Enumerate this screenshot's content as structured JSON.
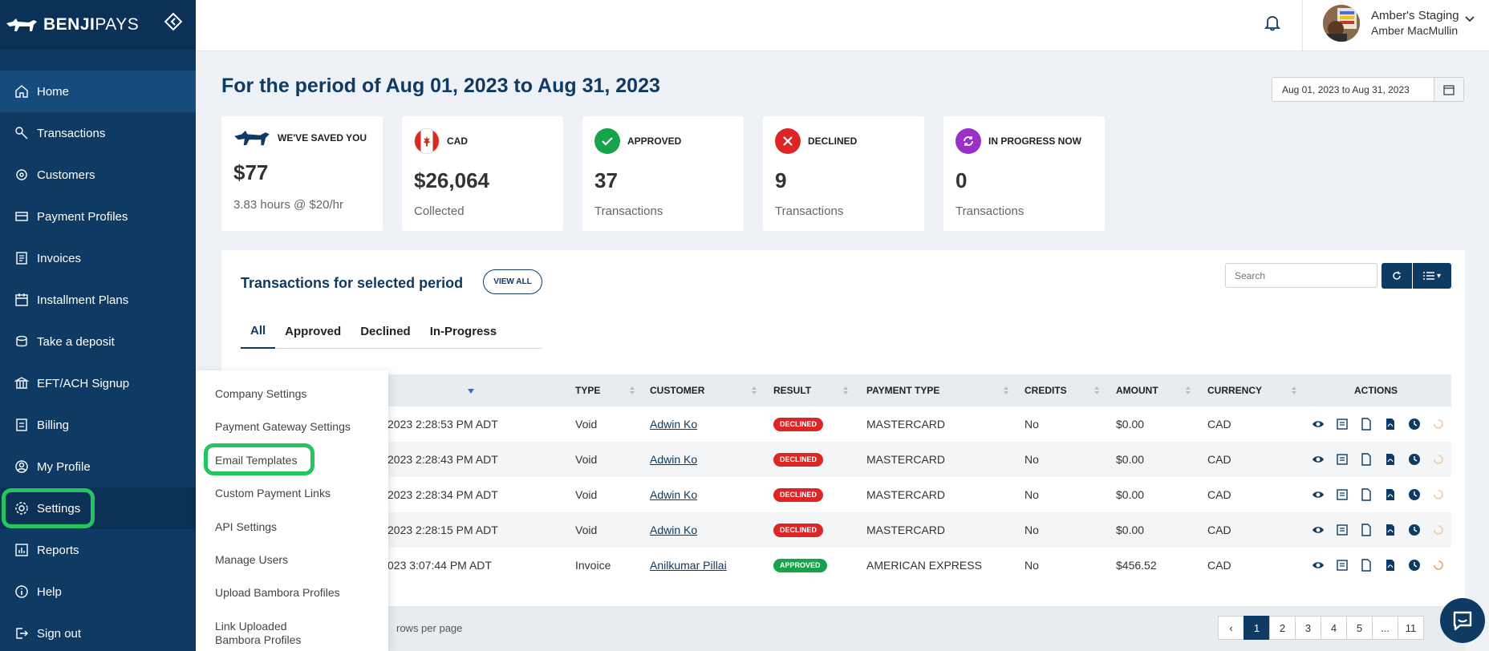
{
  "brand": {
    "bold": "BENJI",
    "light": "PAYS"
  },
  "sidebar": {
    "items": [
      {
        "label": "Home",
        "icon": "home-icon"
      },
      {
        "label": "Transactions",
        "icon": "transactions-icon"
      },
      {
        "label": "Customers",
        "icon": "customers-icon"
      },
      {
        "label": "Payment Profiles",
        "icon": "payment-profiles-icon"
      },
      {
        "label": "Invoices",
        "icon": "invoices-icon"
      },
      {
        "label": "Installment Plans",
        "icon": "calendar-icon"
      },
      {
        "label": "Take a deposit",
        "icon": "deposit-icon"
      },
      {
        "label": "EFT/ACH Signup",
        "icon": "bank-icon"
      },
      {
        "label": "Billing",
        "icon": "billing-icon"
      },
      {
        "label": "My Profile",
        "icon": "profile-icon"
      },
      {
        "label": "Settings",
        "icon": "gear-icon"
      },
      {
        "label": "Reports",
        "icon": "reports-icon"
      },
      {
        "label": "Help",
        "icon": "help-icon"
      },
      {
        "label": "Sign out",
        "icon": "sign-out-icon"
      }
    ]
  },
  "header": {
    "account_name": "Amber's Staging",
    "user_name": "Amber MacMullin"
  },
  "period": {
    "title": "For the period of Aug 01, 2023 to Aug 31, 2023",
    "date_range": "Aug 01, 2023 to Aug 31, 2023"
  },
  "cards": [
    {
      "label": "WE'VE SAVED YOU",
      "value": "$77",
      "sub": "3.83 hours @ $20/hr"
    },
    {
      "label": "CAD",
      "value": "$26,064",
      "sub": "Collected"
    },
    {
      "label": "APPROVED",
      "value": "37",
      "sub": "Transactions"
    },
    {
      "label": "DECLINED",
      "value": "9",
      "sub": "Transactions"
    },
    {
      "label": "IN PROGRESS NOW",
      "value": "0",
      "sub": "Transactions"
    }
  ],
  "transactions": {
    "title": "Transactions for selected period",
    "view_all": "VIEW ALL",
    "tabs": [
      "All",
      "Approved",
      "Declined",
      "In-Progress"
    ],
    "search_placeholder": "Search",
    "columns": [
      "TYPE",
      "CUSTOMER",
      "RESULT",
      "PAYMENT TYPE",
      "CREDITS",
      "AMOUNT",
      "CURRENCY",
      "ACTIONS"
    ],
    "rows": [
      {
        "date": "2023 2:28:53 PM ADT",
        "type": "Void",
        "customer": "Adwin Ko",
        "result": "DECLINED",
        "payment_type": "MASTERCARD",
        "credits": "No",
        "amount": "$0.00",
        "currency": "CAD"
      },
      {
        "date": "2023 2:28:43 PM ADT",
        "type": "Void",
        "customer": "Adwin Ko",
        "result": "DECLINED",
        "payment_type": "MASTERCARD",
        "credits": "No",
        "amount": "$0.00",
        "currency": "CAD"
      },
      {
        "date": "2023 2:28:34 PM ADT",
        "type": "Void",
        "customer": "Adwin Ko",
        "result": "DECLINED",
        "payment_type": "MASTERCARD",
        "credits": "No",
        "amount": "$0.00",
        "currency": "CAD"
      },
      {
        "date": "2023 2:28:15 PM ADT",
        "type": "Void",
        "customer": "Adwin Ko",
        "result": "DECLINED",
        "payment_type": "MASTERCARD",
        "credits": "No",
        "amount": "$0.00",
        "currency": "CAD"
      },
      {
        "date": "023 3:07:44 PM ADT",
        "type": "Invoice",
        "customer": "Anilkumar Pillai",
        "result": "APPROVED",
        "payment_type": "AMERICAN EXPRESS",
        "credits": "No",
        "amount": "$456.52",
        "currency": "CAD"
      }
    ],
    "rows_per_page_label": "rows per page",
    "pages": [
      "‹",
      "1",
      "2",
      "3",
      "4",
      "5",
      "...",
      "11"
    ]
  },
  "settings_menu": {
    "items": [
      "Company Settings",
      "Payment Gateway Settings",
      "Email Templates",
      "Custom Payment Links",
      "API Settings",
      "Manage Users",
      "Upload Bambora Profiles",
      "Link Uploaded Bambora Profiles"
    ]
  },
  "colors": {
    "navy": "#0e3a63",
    "declined": "#dc2626",
    "approved": "#16a34a",
    "highlight": "#22c55e",
    "in_progress": "#9b30c9"
  }
}
